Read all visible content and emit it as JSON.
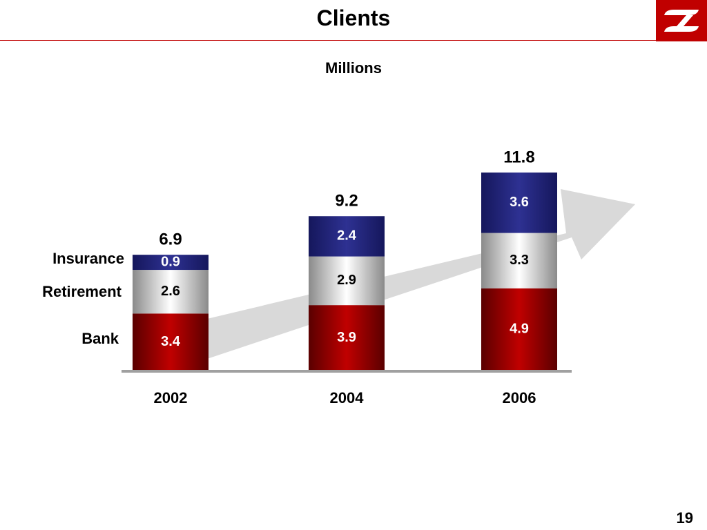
{
  "slide": {
    "title": "Clients",
    "subtitle": "Millions",
    "page_number": "19"
  },
  "logo": {
    "icon": "company-logo-icon",
    "color": "#c00000"
  },
  "colors": {
    "bank": "#c00000",
    "retirement": "#a6a6a6",
    "insurance": "#2e3192",
    "arrow": "#d9d9d9",
    "axis": "#a0a0a0"
  },
  "chart_data": {
    "type": "bar",
    "stacked": true,
    "categories": [
      "2002",
      "2004",
      "2006"
    ],
    "series": [
      {
        "name": "Bank",
        "values": [
          3.4,
          3.9,
          4.9
        ],
        "value_labels": [
          "3.4",
          "3.9",
          "4.9"
        ]
      },
      {
        "name": "Retirement",
        "values": [
          2.6,
          2.9,
          3.3
        ],
        "value_labels": [
          "2.6",
          "2.9",
          "3.3"
        ]
      },
      {
        "name": "Insurance",
        "values": [
          0.9,
          2.4,
          3.6
        ],
        "value_labels": [
          "0.9",
          "2.4",
          "3.6"
        ]
      }
    ],
    "totals": [
      "6.9",
      "9.2",
      "11.8"
    ],
    "title": "Clients",
    "subtitle": "Millions",
    "ylim": [
      0,
      11.8
    ],
    "legend": "left",
    "grid": false,
    "trend_arrow": true
  }
}
